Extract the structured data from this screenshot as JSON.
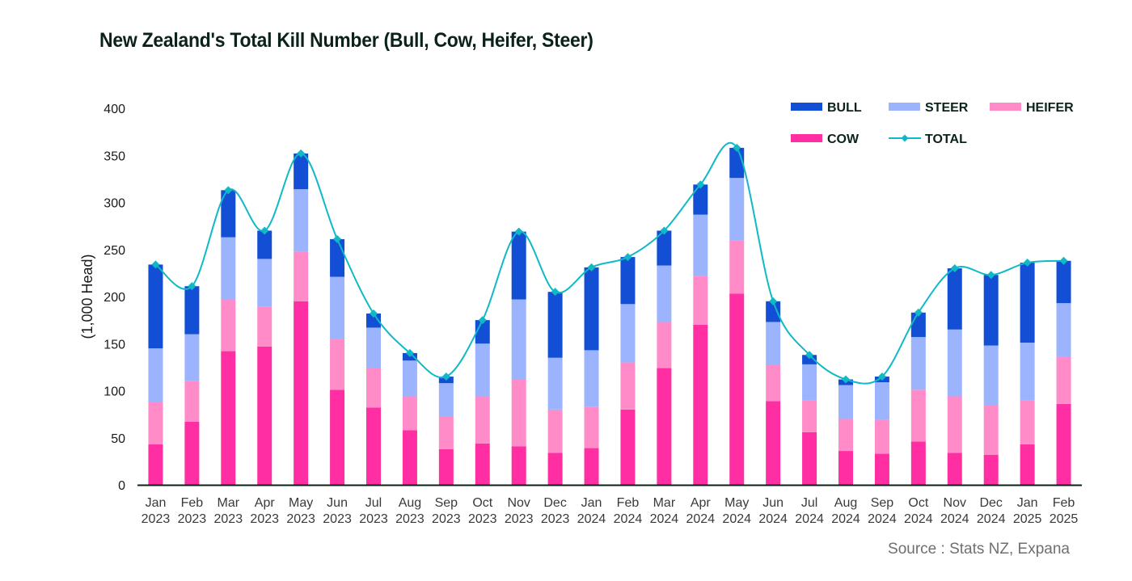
{
  "chart_data": {
    "type": "bar",
    "stacked": true,
    "title": "New Zealand's Total Kill Number (Bull, Cow, Heifer, Steer)",
    "xlabel": "",
    "ylabel": "(1,000 Head)",
    "ylim": [
      0,
      400
    ],
    "yticks": [
      0,
      50,
      100,
      150,
      200,
      250,
      300,
      350,
      400
    ],
    "grid": false,
    "legend_position": "top-right",
    "categories": [
      [
        "Jan",
        "2023"
      ],
      [
        "Feb",
        "2023"
      ],
      [
        "Mar",
        "2023"
      ],
      [
        "Apr",
        "2023"
      ],
      [
        "May",
        "2023"
      ],
      [
        "Jun",
        "2023"
      ],
      [
        "Jul",
        "2023"
      ],
      [
        "Aug",
        "2023"
      ],
      [
        "Sep",
        "2023"
      ],
      [
        "Oct",
        "2023"
      ],
      [
        "Nov",
        "2023"
      ],
      [
        "Dec",
        "2023"
      ],
      [
        "Jan",
        "2024"
      ],
      [
        "Feb",
        "2024"
      ],
      [
        "Mar",
        "2024"
      ],
      [
        "Apr",
        "2024"
      ],
      [
        "May",
        "2024"
      ],
      [
        "Jun",
        "2024"
      ],
      [
        "Jul",
        "2024"
      ],
      [
        "Aug",
        "2024"
      ],
      [
        "Sep",
        "2024"
      ],
      [
        "Oct",
        "2024"
      ],
      [
        "Nov",
        "2024"
      ],
      [
        "Dec",
        "2024"
      ],
      [
        "Jan",
        "2025"
      ],
      [
        "Feb",
        "2025"
      ]
    ],
    "series": [
      {
        "name": "COW",
        "kind": "bar",
        "color": "#ff2fa3",
        "values": [
          43,
          67,
          142,
          147,
          195,
          101,
          82,
          58,
          38,
          44,
          41,
          34,
          39,
          80,
          124,
          170,
          203,
          89,
          56,
          36,
          33,
          46,
          34,
          32,
          43,
          86
        ]
      },
      {
        "name": "HEIFER",
        "kind": "bar",
        "color": "#ff8bc9",
        "values": [
          45,
          43,
          55,
          42,
          53,
          54,
          42,
          36,
          35,
          50,
          71,
          46,
          44,
          50,
          49,
          52,
          57,
          38,
          34,
          34,
          36,
          55,
          60,
          53,
          47,
          50
        ]
      },
      {
        "name": "STEER",
        "kind": "bar",
        "color": "#9bb4fd",
        "values": [
          57,
          50,
          66,
          51,
          66,
          66,
          43,
          38,
          35,
          56,
          85,
          55,
          60,
          62,
          60,
          65,
          66,
          46,
          38,
          36,
          40,
          56,
          71,
          63,
          61,
          57
        ]
      },
      {
        "name": "BULL",
        "kind": "bar",
        "color": "#134fd4",
        "values": [
          89,
          51,
          50,
          30,
          38,
          40,
          15,
          8,
          7,
          25,
          72,
          70,
          88,
          50,
          37,
          32,
          32,
          22,
          10,
          6,
          6,
          26,
          65,
          75,
          85,
          45
        ]
      },
      {
        "name": "TOTAL",
        "kind": "line",
        "color": "#0fb9c6",
        "values": [
          234,
          211,
          313,
          270,
          352,
          261,
          182,
          140,
          115,
          175,
          269,
          205,
          231,
          242,
          270,
          319,
          358,
          195,
          138,
          112,
          115,
          183,
          230,
          223,
          236,
          238
        ]
      }
    ],
    "legend": [
      {
        "label": "BULL",
        "color": "#134fd4",
        "marker": "bar"
      },
      {
        "label": "STEER",
        "color": "#9bb4fd",
        "marker": "bar"
      },
      {
        "label": "HEIFER",
        "color": "#ff8bc9",
        "marker": "bar"
      },
      {
        "label": "COW",
        "color": "#ff2fa3",
        "marker": "bar"
      },
      {
        "label": "TOTAL",
        "color": "#0fb9c6",
        "marker": "line-diamond"
      }
    ]
  },
  "source": "Source : Stats NZ, Expana"
}
